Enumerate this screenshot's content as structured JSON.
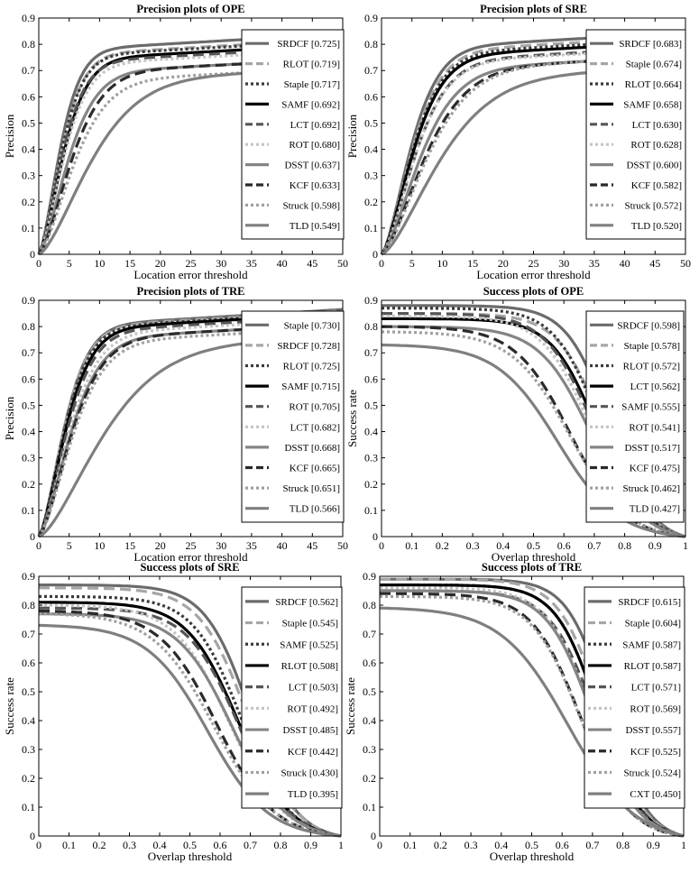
{
  "chart_data": [
    {
      "type": "line",
      "title": "Precision plots of OPE",
      "xlabel": "Location error threshold",
      "ylabel": "Precision",
      "xlim": [
        0,
        50
      ],
      "ylim": [
        0,
        0.9
      ],
      "xticks": [
        "0",
        "5",
        "10",
        "15",
        "20",
        "25",
        "30",
        "35",
        "40",
        "45",
        "50"
      ],
      "yticks": [
        "0",
        "0.1",
        "0.2",
        "0.3",
        "0.4",
        "0.5",
        "0.6",
        "0.7",
        "0.8",
        "0.9"
      ],
      "legend_position": "top-right",
      "series": [
        {
          "label": "SRDCF [0.725]",
          "end": 0.84,
          "color": "#6b6b6b",
          "dash": "solid",
          "k": 3.8
        },
        {
          "label": "RLOT [0.719]",
          "end": 0.82,
          "color": "#a6a6a6",
          "dash": "long",
          "k": 4.0
        },
        {
          "label": "Staple [0.717]",
          "end": 0.815,
          "color": "#3a3a3a",
          "dash": "dot",
          "k": 4.0
        },
        {
          "label": "SAMF [0.692]",
          "end": 0.8,
          "color": "#000000",
          "dash": "solid",
          "k": 4.4
        },
        {
          "label": "LCT [0.692]",
          "end": 0.79,
          "color": "#555555",
          "dash": "long",
          "k": 4.2
        },
        {
          "label": "ROT [0.680]",
          "end": 0.78,
          "color": "#c4c4c4",
          "dash": "dot",
          "k": 4.5
        },
        {
          "label": "DSST [0.637]",
          "end": 0.745,
          "color": "#858585",
          "dash": "solid",
          "k": 5.2
        },
        {
          "label": "KCF [0.633]",
          "end": 0.745,
          "color": "#2a2a2a",
          "dash": "long",
          "k": 5.8
        },
        {
          "label": "Struck [0.598]",
          "end": 0.71,
          "color": "#a0a0a0",
          "dash": "dot",
          "k": 6.2
        },
        {
          "label": "TLD [0.549]",
          "end": 0.71,
          "color": "#7f7f7f",
          "dash": "solid",
          "k": 9.0
        }
      ]
    },
    {
      "type": "line",
      "title": "Precision plots of SRE",
      "xlabel": "Location error threshold",
      "ylabel": "Precision",
      "xlim": [
        0,
        50
      ],
      "ylim": [
        0,
        0.9
      ],
      "xticks": [
        "0",
        "5",
        "10",
        "15",
        "20",
        "25",
        "30",
        "35",
        "40",
        "45",
        "50"
      ],
      "yticks": [
        "0",
        "0.1",
        "0.2",
        "0.3",
        "0.4",
        "0.5",
        "0.6",
        "0.7",
        "0.8",
        "0.9"
      ],
      "legend_position": "top-right",
      "series": [
        {
          "label": "SRDCF [0.683]",
          "end": 0.845,
          "color": "#6b6b6b",
          "dash": "solid",
          "k": 5.2
        },
        {
          "label": "Staple [0.674]",
          "end": 0.83,
          "color": "#a6a6a6",
          "dash": "long",
          "k": 5.4
        },
        {
          "label": "RLOT [0.664]",
          "end": 0.82,
          "color": "#3a3a3a",
          "dash": "dot",
          "k": 5.5
        },
        {
          "label": "SAMF [0.658]",
          "end": 0.81,
          "color": "#000000",
          "dash": "solid",
          "k": 5.6
        },
        {
          "label": "LCT [0.630]",
          "end": 0.79,
          "color": "#555555",
          "dash": "long",
          "k": 6.0
        },
        {
          "label": "ROT [0.628]",
          "end": 0.785,
          "color": "#c4c4c4",
          "dash": "dot",
          "k": 6.0
        },
        {
          "label": "DSST [0.600]",
          "end": 0.755,
          "color": "#858585",
          "dash": "solid",
          "k": 6.8
        },
        {
          "label": "KCF [0.582]",
          "end": 0.755,
          "color": "#2a2a2a",
          "dash": "long",
          "k": 7.6
        },
        {
          "label": "Struck [0.572]",
          "end": 0.755,
          "color": "#a0a0a0",
          "dash": "dot",
          "k": 8.0
        },
        {
          "label": "TLD [0.520]",
          "end": 0.715,
          "color": "#7f7f7f",
          "dash": "solid",
          "k": 10.0
        }
      ]
    },
    {
      "type": "line",
      "title": "Precision plots of TRE",
      "xlabel": "Location error threshold",
      "ylabel": "Precision",
      "xlim": [
        0,
        50
      ],
      "ylim": [
        0,
        0.9
      ],
      "xticks": [
        "0",
        "5",
        "10",
        "15",
        "20",
        "25",
        "30",
        "35",
        "40",
        "45",
        "50"
      ],
      "yticks": [
        "0",
        "0.1",
        "0.2",
        "0.3",
        "0.4",
        "0.5",
        "0.6",
        "0.7",
        "0.8",
        "0.9"
      ],
      "legend_position": "top-right",
      "series": [
        {
          "label": "Staple [0.730]",
          "end": 0.865,
          "color": "#6b6b6b",
          "dash": "solid",
          "k": 4.5
        },
        {
          "label": "SRDCF [0.728]",
          "end": 0.86,
          "color": "#a6a6a6",
          "dash": "long",
          "k": 4.5
        },
        {
          "label": "RLOT [0.725]",
          "end": 0.855,
          "color": "#3a3a3a",
          "dash": "dot",
          "k": 4.6
        },
        {
          "label": "SAMF [0.715]",
          "end": 0.85,
          "color": "#000000",
          "dash": "solid",
          "k": 4.8
        },
        {
          "label": "ROT [0.705]",
          "end": 0.84,
          "color": "#555555",
          "dash": "long",
          "k": 5.0
        },
        {
          "label": "LCT [0.682]",
          "end": 0.83,
          "color": "#c4c4c4",
          "dash": "dot",
          "k": 5.4
        },
        {
          "label": "DSST [0.668]",
          "end": 0.81,
          "color": "#858585",
          "dash": "solid",
          "k": 5.6
        },
        {
          "label": "KCF [0.665]",
          "end": 0.81,
          "color": "#2a2a2a",
          "dash": "long",
          "k": 5.8
        },
        {
          "label": "Struck [0.651]",
          "end": 0.795,
          "color": "#a0a0a0",
          "dash": "dot",
          "k": 6.0
        },
        {
          "label": "TLD [0.566]",
          "end": 0.765,
          "color": "#7f7f7f",
          "dash": "solid",
          "k": 11.0
        }
      ]
    },
    {
      "type": "line",
      "title": "Success plots of OPE",
      "xlabel": "Overlap threshold",
      "ylabel": "Success rate",
      "xlim": [
        0,
        1
      ],
      "ylim": [
        0,
        0.9
      ],
      "xticks": [
        "0",
        "0.1",
        "0.2",
        "0.3",
        "0.4",
        "0.5",
        "0.6",
        "0.7",
        "0.8",
        "0.9",
        "1"
      ],
      "yticks": [
        "0",
        "0.1",
        "0.2",
        "0.3",
        "0.4",
        "0.5",
        "0.6",
        "0.7",
        "0.8",
        "0.9"
      ],
      "legend_position": "top-right",
      "series": [
        {
          "label": "SRDCF [0.598]",
          "start": 0.88,
          "end": 0.0,
          "color": "#6b6b6b",
          "dash": "solid",
          "c": 0.75,
          "s": 0.07
        },
        {
          "label": "Staple [0.578]",
          "start": 0.85,
          "end": 0.0,
          "color": "#a6a6a6",
          "dash": "long",
          "c": 0.73,
          "s": 0.075
        },
        {
          "label": "RLOT [0.572]",
          "start": 0.87,
          "end": 0.0,
          "color": "#3a3a3a",
          "dash": "dot",
          "c": 0.72,
          "s": 0.075
        },
        {
          "label": "LCT [0.562]",
          "start": 0.83,
          "end": 0.0,
          "color": "#000000",
          "dash": "solid",
          "c": 0.71,
          "s": 0.075
        },
        {
          "label": "SAMF [0.555]",
          "start": 0.85,
          "end": 0.0,
          "color": "#555555",
          "dash": "long",
          "c": 0.7,
          "s": 0.08
        },
        {
          "label": "ROT [0.541]",
          "start": 0.84,
          "end": 0.0,
          "color": "#c4c4c4",
          "dash": "dot",
          "c": 0.69,
          "s": 0.08
        },
        {
          "label": "DSST [0.517]",
          "start": 0.8,
          "end": 0.0,
          "color": "#858585",
          "dash": "solid",
          "c": 0.69,
          "s": 0.085
        },
        {
          "label": "KCF [0.475]",
          "start": 0.8,
          "end": 0.0,
          "color": "#2a2a2a",
          "dash": "long",
          "c": 0.62,
          "s": 0.09
        },
        {
          "label": "Struck [0.462]",
          "start": 0.78,
          "end": 0.0,
          "color": "#a0a0a0",
          "dash": "dot",
          "c": 0.62,
          "s": 0.095
        },
        {
          "label": "TLD [0.427]",
          "start": 0.73,
          "end": 0.0,
          "color": "#7f7f7f",
          "dash": "solid",
          "c": 0.58,
          "s": 0.1
        }
      ]
    },
    {
      "type": "line",
      "title": "Success plots of SRE",
      "xlabel": "Overlap threshold",
      "ylabel": "Success rate",
      "xlim": [
        0,
        1
      ],
      "ylim": [
        0,
        0.9
      ],
      "xticks": [
        "0",
        "0.1",
        "0.2",
        "0.3",
        "0.4",
        "0.5",
        "0.6",
        "0.7",
        "0.8",
        "0.9",
        "1"
      ],
      "yticks": [
        "0",
        "0.1",
        "0.2",
        "0.3",
        "0.4",
        "0.5",
        "0.6",
        "0.7",
        "0.8",
        "0.9"
      ],
      "legend_position": "top-right",
      "series": [
        {
          "label": "SRDCF [0.562]",
          "start": 0.87,
          "end": 0.0,
          "color": "#6b6b6b",
          "dash": "solid",
          "c": 0.7,
          "s": 0.075
        },
        {
          "label": "Staple [0.545]",
          "start": 0.86,
          "end": 0.0,
          "color": "#a6a6a6",
          "dash": "long",
          "c": 0.69,
          "s": 0.08
        },
        {
          "label": "SAMF [0.525]",
          "start": 0.83,
          "end": 0.0,
          "color": "#3a3a3a",
          "dash": "dot",
          "c": 0.67,
          "s": 0.08
        },
        {
          "label": "RLOT [0.508]",
          "start": 0.81,
          "end": 0.0,
          "color": "#000000",
          "dash": "solid",
          "c": 0.66,
          "s": 0.085
        },
        {
          "label": "LCT [0.503]",
          "start": 0.79,
          "end": 0.0,
          "color": "#555555",
          "dash": "long",
          "c": 0.66,
          "s": 0.085
        },
        {
          "label": "ROT [0.492]",
          "start": 0.8,
          "end": 0.0,
          "color": "#c4c4c4",
          "dash": "dot",
          "c": 0.63,
          "s": 0.09
        },
        {
          "label": "DSST [0.485]",
          "start": 0.77,
          "end": 0.0,
          "color": "#858585",
          "dash": "solid",
          "c": 0.64,
          "s": 0.09
        },
        {
          "label": "KCF [0.442]",
          "start": 0.78,
          "end": 0.0,
          "color": "#2a2a2a",
          "dash": "long",
          "c": 0.59,
          "s": 0.095
        },
        {
          "label": "Struck [0.430]",
          "start": 0.77,
          "end": 0.0,
          "color": "#a0a0a0",
          "dash": "dot",
          "c": 0.58,
          "s": 0.1
        },
        {
          "label": "TLD [0.395]",
          "start": 0.73,
          "end": 0.0,
          "color": "#7f7f7f",
          "dash": "solid",
          "c": 0.56,
          "s": 0.1
        }
      ]
    },
    {
      "type": "line",
      "title": "Success plots of TRE",
      "xlabel": "Overlap threshold",
      "ylabel": "Success rate",
      "xlim": [
        0,
        1
      ],
      "ylim": [
        0,
        0.9
      ],
      "xticks": [
        "0",
        "0.1",
        "0.2",
        "0.3",
        "0.4",
        "0.5",
        "0.6",
        "0.7",
        "0.8",
        "0.9",
        "1"
      ],
      "yticks": [
        "0",
        "0.1",
        "0.2",
        "0.3",
        "0.4",
        "0.5",
        "0.6",
        "0.7",
        "0.8",
        "0.9"
      ],
      "legend_position": "top-right",
      "series": [
        {
          "label": "SRDCF [0.615]",
          "start": 0.89,
          "end": 0.0,
          "color": "#6b6b6b",
          "dash": "solid",
          "c": 0.75,
          "s": 0.065
        },
        {
          "label": "Staple [0.604]",
          "start": 0.89,
          "end": 0.0,
          "color": "#a6a6a6",
          "dash": "long",
          "c": 0.73,
          "s": 0.07
        },
        {
          "label": "SAMF [0.587]",
          "start": 0.87,
          "end": 0.0,
          "color": "#3a3a3a",
          "dash": "dot",
          "c": 0.72,
          "s": 0.07
        },
        {
          "label": "RLOT [0.587]",
          "start": 0.87,
          "end": 0.0,
          "color": "#000000",
          "dash": "solid",
          "c": 0.72,
          "s": 0.07
        },
        {
          "label": "LCT [0.571]",
          "start": 0.85,
          "end": 0.0,
          "color": "#555555",
          "dash": "long",
          "c": 0.71,
          "s": 0.075
        },
        {
          "label": "ROT [0.569]",
          "start": 0.86,
          "end": 0.0,
          "color": "#c4c4c4",
          "dash": "dot",
          "c": 0.7,
          "s": 0.075
        },
        {
          "label": "DSST [0.557]",
          "start": 0.85,
          "end": 0.0,
          "color": "#858585",
          "dash": "solid",
          "c": 0.7,
          "s": 0.075
        },
        {
          "label": "KCF [0.525]",
          "start": 0.84,
          "end": 0.0,
          "color": "#2a2a2a",
          "dash": "long",
          "c": 0.66,
          "s": 0.08
        },
        {
          "label": "Struck [0.524]",
          "start": 0.83,
          "end": 0.0,
          "color": "#a0a0a0",
          "dash": "dot",
          "c": 0.66,
          "s": 0.08
        },
        {
          "label": "CXT [0.450]",
          "start": 0.79,
          "end": 0.0,
          "color": "#7f7f7f",
          "dash": "solid",
          "c": 0.62,
          "s": 0.11
        }
      ]
    }
  ]
}
